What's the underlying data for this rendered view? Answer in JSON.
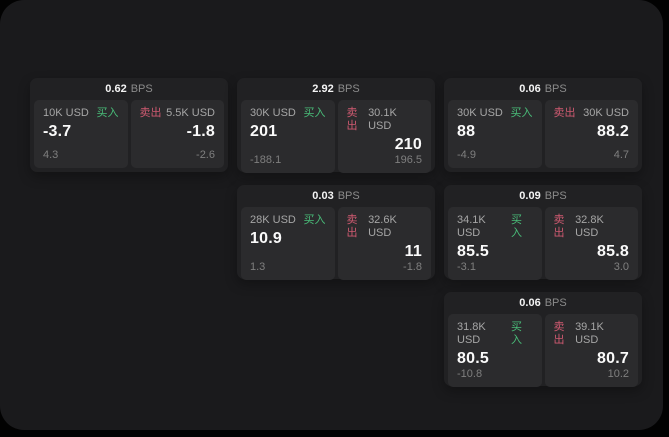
{
  "colors": {
    "buy-color": "#49bd79",
    "sell-color": "#cf5a71"
  },
  "cards": [
    {
      "bps_value": "0.62",
      "bps_unit": "BPS",
      "buy": {
        "amount": "10K USD",
        "side_label": "买入",
        "value": "-3.7",
        "delta": "4.3"
      },
      "sell": {
        "amount": "5.5K USD",
        "side_label": "卖出",
        "value": "-1.8",
        "delta": "-2.6"
      }
    },
    {
      "bps_value": "2.92",
      "bps_unit": "BPS",
      "buy": {
        "amount": "30K USD",
        "side_label": "买入",
        "value": "201",
        "delta": "-188.1"
      },
      "sell": {
        "amount": "30.1K USD",
        "side_label": "卖出",
        "value": "210",
        "delta": "196.5"
      }
    },
    {
      "bps_value": "0.06",
      "bps_unit": "BPS",
      "buy": {
        "amount": "30K USD",
        "side_label": "买入",
        "value": "88",
        "delta": "-4.9"
      },
      "sell": {
        "amount": "30K USD",
        "side_label": "卖出",
        "value": "88.2",
        "delta": "4.7"
      }
    },
    {
      "bps_value": "0.03",
      "bps_unit": "BPS",
      "buy": {
        "amount": "28K USD",
        "side_label": "买入",
        "value": "10.9",
        "delta": "1.3"
      },
      "sell": {
        "amount": "32.6K USD",
        "side_label": "卖出",
        "value": "11",
        "delta": "-1.8"
      }
    },
    {
      "bps_value": "0.09",
      "bps_unit": "BPS",
      "buy": {
        "amount": "34.1K USD",
        "side_label": "买入",
        "value": "85.5",
        "delta": "-3.1"
      },
      "sell": {
        "amount": "32.8K USD",
        "side_label": "卖出",
        "value": "85.8",
        "delta": "3.0"
      }
    },
    {
      "bps_value": "0.06",
      "bps_unit": "BPS",
      "buy": {
        "amount": "31.8K USD",
        "side_label": "买入",
        "value": "80.5",
        "delta": "-10.8"
      },
      "sell": {
        "amount": "39.1K USD",
        "side_label": "卖出",
        "value": "80.7",
        "delta": "10.2"
      }
    }
  ]
}
